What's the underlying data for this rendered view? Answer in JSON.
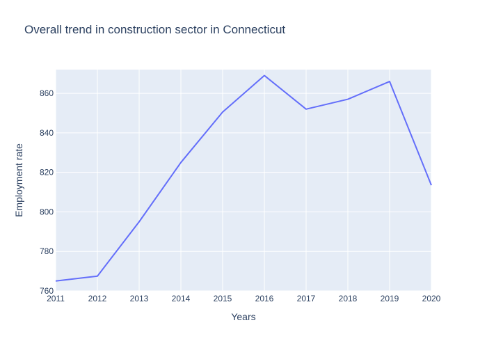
{
  "chart_data": {
    "type": "line",
    "title": "Overall trend in construction sector in Connecticut",
    "xlabel": "Years",
    "ylabel": "Employment rate",
    "x": [
      2011,
      2012,
      2013,
      2014,
      2015,
      2016,
      2017,
      2018,
      2019,
      2020
    ],
    "series": [
      {
        "values": [
          765,
          767.5,
          795,
          825,
          850.5,
          869,
          852,
          857,
          866,
          813.5
        ]
      }
    ],
    "xlim": [
      2011,
      2020
    ],
    "ylim": [
      760,
      872
    ],
    "x_ticks": [
      "2011",
      "2012",
      "2013",
      "2014",
      "2015",
      "2016",
      "2017",
      "2018",
      "2019",
      "2020"
    ],
    "y_ticks": [
      "760",
      "780",
      "800",
      "820",
      "840",
      "860"
    ],
    "grid": true,
    "colors": {
      "line": "#636efa",
      "plot_bg": "#e5ecf6",
      "grid": "#ffffff",
      "text": "#2a3f5f"
    }
  }
}
